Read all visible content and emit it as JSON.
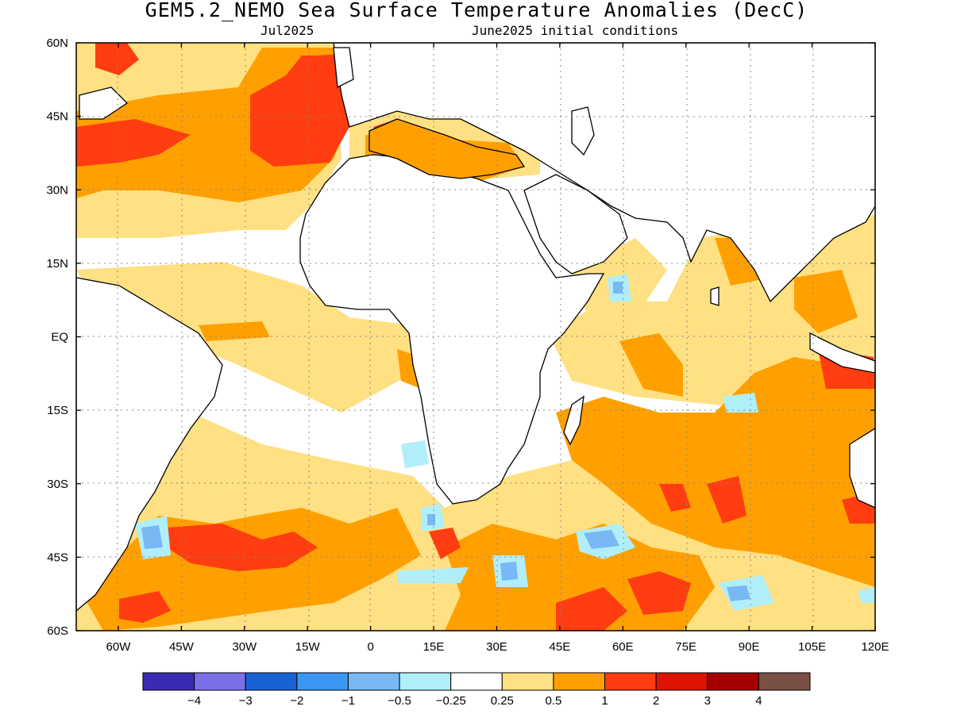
{
  "header": {
    "title": "GEM5.2_NEMO Sea Surface Temperature Anomalies (DecC)",
    "valid_month": "Jul2025",
    "init_conditions": "June2025 initial conditions"
  },
  "map": {
    "lon_range": [
      -70,
      120
    ],
    "lat_range": [
      -60,
      60
    ],
    "lat_labels": [
      "60N",
      "45N",
      "30N",
      "15N",
      "EQ",
      "15S",
      "30S",
      "45S",
      "60S"
    ],
    "lon_labels": [
      "60W",
      "45W",
      "30W",
      "15W",
      "0",
      "15E",
      "30E",
      "45E",
      "60E",
      "75E",
      "90E",
      "105E",
      "120E"
    ],
    "grid_lines": "dotted"
  },
  "colorbar": {
    "colors": [
      "#3a2bb3",
      "#7b6fe8",
      "#1763d6",
      "#3c97f2",
      "#78b8f5",
      "#b0eefa",
      "#ffffff",
      "#ffe082",
      "#ffa000",
      "#ff3d10",
      "#dd1500",
      "#a50000",
      "#7a4f44"
    ],
    "tick_labels": [
      "−4",
      "−3",
      "−2",
      "−1",
      "−0.5",
      "−0.25",
      "0.25",
      "0.5",
      "1",
      "2",
      "3",
      "4"
    ]
  }
}
